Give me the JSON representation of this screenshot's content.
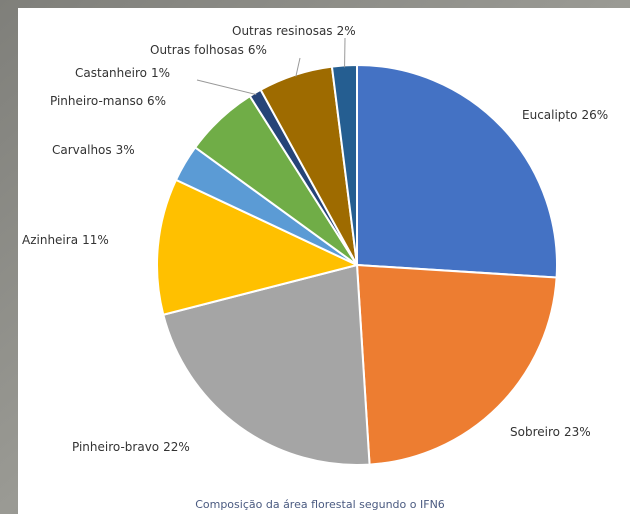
{
  "chart_data": {
    "type": "pie",
    "title": "Composição da área florestal segundo o IFN6",
    "categories": [
      "Eucalipto",
      "Sobreiro",
      "Pinheiro-bravo",
      "Azinheira",
      "Carvalhos",
      "Pinheiro-manso",
      "Castanheiro",
      "Outras folhosas",
      "Outras resinosas"
    ],
    "values": [
      26,
      23,
      22,
      11,
      3,
      6,
      1,
      6,
      2
    ],
    "value_labels": [
      "26%",
      "23%",
      "22%",
      "11%",
      "3%",
      "6%",
      "1%",
      "6%",
      "2%"
    ],
    "colors": [
      "#4472c4",
      "#ed7d31",
      "#a5a5a5",
      "#ffc000",
      "#5b9bd5",
      "#70ad47",
      "#264478",
      "#9e6b00",
      "#255e91"
    ]
  }
}
